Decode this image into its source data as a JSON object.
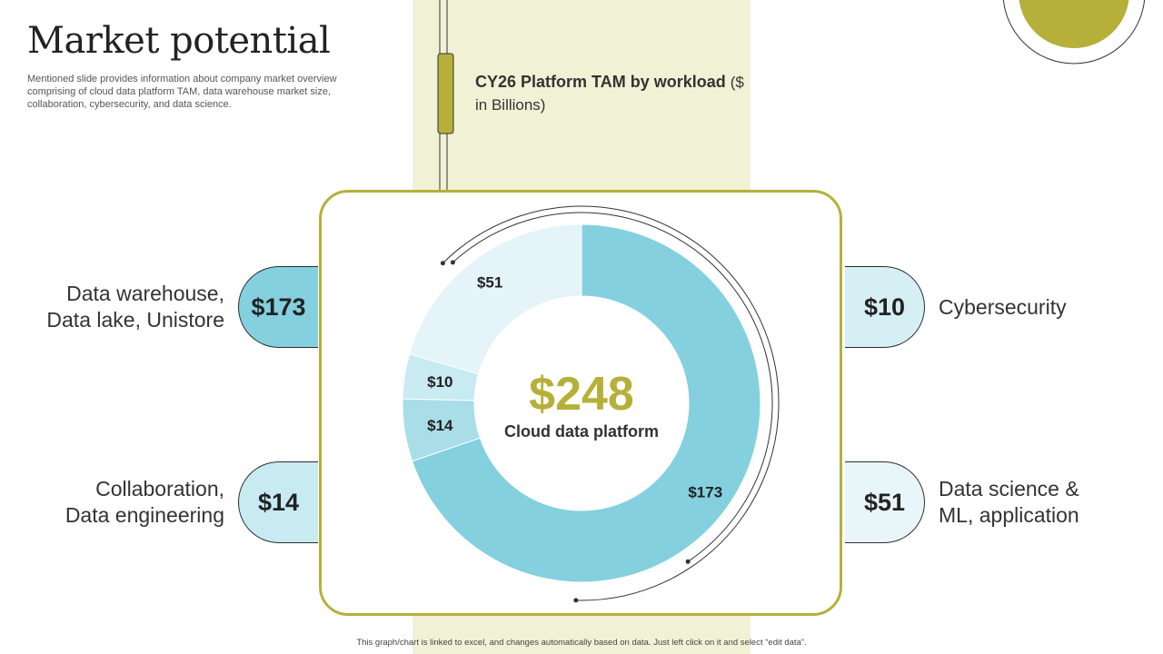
{
  "slide": {
    "title": "Market potential",
    "subtitle": "Mentioned slide provides information about company market overview comprising of cloud data platform TAM,  data warehouse market size, collaboration, cybersecurity, and data science.",
    "footnote": "This graph/chart is linked to excel, and changes automatically based on data. Just left click on it and select “edit data”."
  },
  "colors": {
    "olive": "#b6b03a",
    "band": "#f1f1d6",
    "teal_dark": "#84d0df",
    "teal_mid": "#a9dee8",
    "teal_light": "#c8eaf1",
    "teal_pale": "#e4f4f8"
  },
  "chart_data": {
    "type": "donut",
    "title_bold": "CY26 Platform  TAM by workload",
    "title_unit": "($ in Billions)",
    "center_value": "$248",
    "center_label": "Cloud data platform",
    "slices": [
      {
        "label": "Data warehouse, Data lake, Unistore",
        "value": 173,
        "value_label": "$173",
        "color": "#84d0df"
      },
      {
        "label": "Collaboration, Data engineering",
        "value": 14,
        "value_label": "$14",
        "color": "#a9dee8"
      },
      {
        "label": "Cybersecurity",
        "value": 10,
        "value_label": "$10",
        "color": "#c8eaf1"
      },
      {
        "label": "Data science & ML, application",
        "value": 51,
        "value_label": "$51",
        "color": "#e4f4f8"
      }
    ]
  },
  "callouts": {
    "data_warehouse": {
      "value": "$173",
      "label_line1": "Data warehouse,",
      "label_line2": "Data lake, Unistore"
    },
    "collaboration": {
      "value": "$14",
      "label_line1": "Collaboration,",
      "label_line2": "Data engineering"
    },
    "cybersecurity": {
      "value": "$10",
      "label_line1": "Cybersecurity"
    },
    "data_science": {
      "value": "$51",
      "label_line1": "Data science &",
      "label_line2": "ML, application"
    }
  }
}
